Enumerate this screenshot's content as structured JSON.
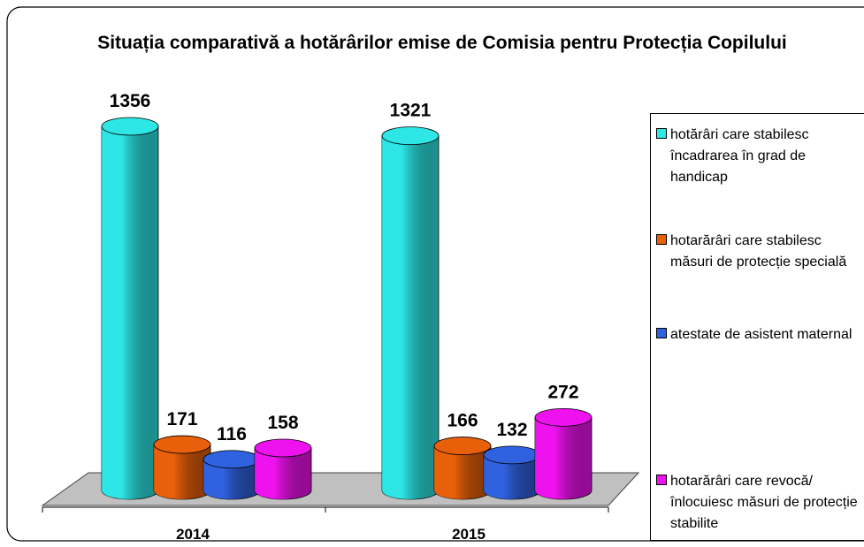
{
  "chart_data": {
    "type": "bar3d",
    "title": "Situația comparativă a hotărârilor emise de Comisia pentru Protecția Copilului",
    "categories": [
      "2014",
      "2015"
    ],
    "series": [
      {
        "name": "hotărâri care stabilesc încadrarea în grad de handicap",
        "color": "#2ee6e6",
        "values": [
          1356,
          1321
        ]
      },
      {
        "name": "hotarărâri care stabilesc măsuri de protecție specială",
        "color": "#e8600a",
        "values": [
          171,
          166
        ]
      },
      {
        "name": "atestate de asistent maternal",
        "color": "#3062e0",
        "values": [
          116,
          132
        ]
      },
      {
        "name": "hotarărâri care revocă/înlocuiesc măsuri de protecție stabilite",
        "color": "#ee12ee",
        "values": [
          158,
          272
        ]
      }
    ],
    "legend": "right"
  }
}
